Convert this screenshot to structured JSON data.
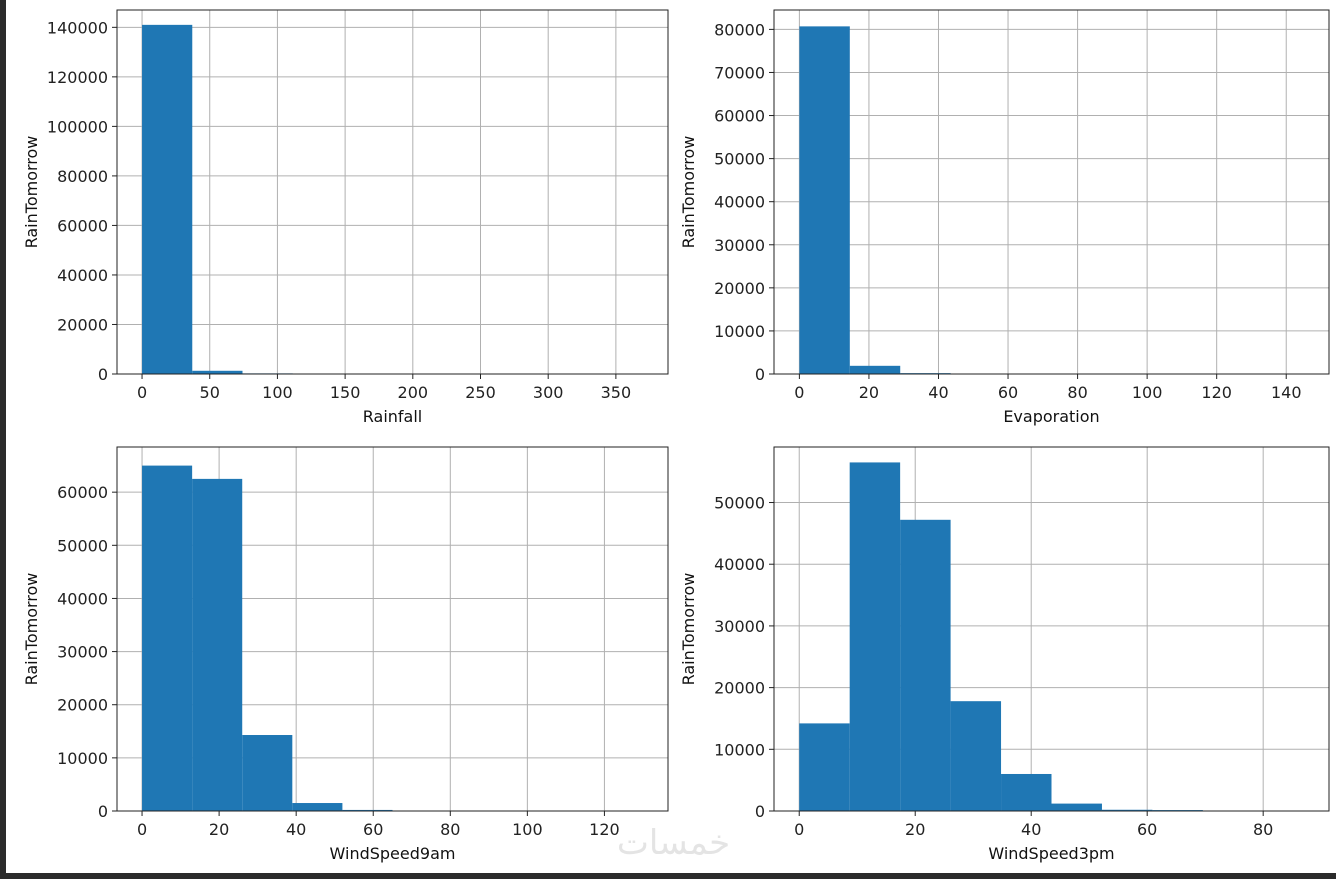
{
  "colors": {
    "bar": "#1f77b4",
    "grid": "#b0b0b0",
    "frame": "#222222",
    "figure_bg": "#ffffff",
    "window_bg": "#2b2b2b"
  },
  "watermark": "خمسات",
  "chart_data": [
    {
      "type": "bar",
      "subtype": "histogram",
      "grid": true,
      "xlabel": "Rainfall",
      "ylabel": "RainTomorrow",
      "xlim": [
        -18.5,
        388.5
      ],
      "ylim": [
        0,
        147000
      ],
      "xticks": [
        0,
        50,
        100,
        150,
        200,
        250,
        300,
        350
      ],
      "yticks": [
        0,
        20000,
        40000,
        60000,
        80000,
        100000,
        120000,
        140000
      ],
      "bin_edges": [
        0,
        37.1,
        74.2,
        111.3,
        148.4,
        185.5,
        222.6,
        259.7,
        296.8,
        333.9,
        371
      ],
      "values": [
        141000,
        1300,
        250,
        50,
        20,
        10,
        5,
        3,
        2,
        1
      ]
    },
    {
      "type": "bar",
      "subtype": "histogram",
      "grid": true,
      "xlabel": "Evaporation",
      "ylabel": "RainTomorrow",
      "xlim": [
        -7.3,
        152.3
      ],
      "ylim": [
        0,
        84500
      ],
      "xticks": [
        0,
        20,
        40,
        60,
        80,
        100,
        120,
        140
      ],
      "yticks": [
        0,
        10000,
        20000,
        30000,
        40000,
        50000,
        60000,
        70000,
        80000
      ],
      "bin_edges": [
        0,
        14.5,
        29,
        43.5,
        58,
        72.5,
        87,
        101.5,
        116,
        130.5,
        145
      ],
      "values": [
        80700,
        1900,
        200,
        30,
        10,
        5,
        3,
        2,
        1,
        1
      ]
    },
    {
      "type": "bar",
      "subtype": "histogram",
      "grid": true,
      "xlabel": "WindSpeed9am",
      "ylabel": "RainTomorrow",
      "xlim": [
        -6.5,
        136.5
      ],
      "ylim": [
        0,
        68500
      ],
      "xticks": [
        0,
        20,
        40,
        60,
        80,
        100,
        120
      ],
      "yticks": [
        0,
        10000,
        20000,
        30000,
        40000,
        50000,
        60000
      ],
      "bin_edges": [
        0,
        13,
        26,
        39,
        52,
        65,
        78,
        91,
        104,
        117,
        130
      ],
      "values": [
        65000,
        62500,
        14300,
        1500,
        200,
        40,
        15,
        8,
        4,
        2
      ]
    },
    {
      "type": "bar",
      "subtype": "histogram",
      "grid": true,
      "xlabel": "WindSpeed3pm",
      "ylabel": "RainTomorrow",
      "xlim": [
        -4.35,
        91.35
      ],
      "ylim": [
        0,
        59000
      ],
      "xticks": [
        0,
        20,
        40,
        60,
        80
      ],
      "yticks": [
        0,
        10000,
        20000,
        30000,
        40000,
        50000
      ],
      "bin_edges": [
        0,
        8.7,
        17.4,
        26.1,
        34.8,
        43.5,
        52.2,
        60.9,
        69.6,
        78.3,
        87
      ],
      "values": [
        14200,
        56500,
        47200,
        17800,
        6000,
        1200,
        200,
        150,
        30,
        10
      ]
    }
  ]
}
